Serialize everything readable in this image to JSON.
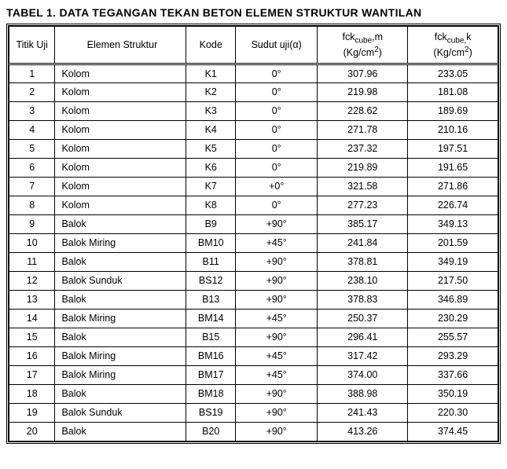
{
  "title": "TABEL 1. DATA TEGANGAN TEKAN BETON ELEMEN STRUKTUR WANTILAN",
  "columns": {
    "titik": "Titik Uji",
    "elemen": "Elemen Struktur",
    "kode": "Kode",
    "sudut": "Sudut uji(α)",
    "fckm_line1": "fck",
    "fckm_sub": "cube",
    "fckm_after": ",m",
    "fckm_unit1": "(Kg/cm",
    "fckm_sup": "2",
    "fckm_unit2": ")",
    "fckk_line1": "fck",
    "fckk_sub": "cube,",
    "fckk_after": "k",
    "fckk_unit1": "(Kg/cm",
    "fckk_sup": "2",
    "fckk_unit2": ")"
  },
  "rows": [
    {
      "titik": "1",
      "elemen": "Kolom",
      "kode": "K1",
      "sudut": "0°",
      "fckm": "307.96",
      "fckk": "233.05"
    },
    {
      "titik": "2",
      "elemen": "Kolom",
      "kode": "K2",
      "sudut": "0°",
      "fckm": "219.98",
      "fckk": "181.08"
    },
    {
      "titik": "3",
      "elemen": "Kolom",
      "kode": "K3",
      "sudut": "0°",
      "fckm": "228.62",
      "fckk": "189.69"
    },
    {
      "titik": "4",
      "elemen": "Kolom",
      "kode": "K4",
      "sudut": "0°",
      "fckm": "271.78",
      "fckk": "210.16"
    },
    {
      "titik": "5",
      "elemen": "Kolom",
      "kode": "K5",
      "sudut": "0°",
      "fckm": "237.32",
      "fckk": "197.51"
    },
    {
      "titik": "6",
      "elemen": "Kolom",
      "kode": "K6",
      "sudut": "0°",
      "fckm": "219.89",
      "fckk": "191.65"
    },
    {
      "titik": "7",
      "elemen": "Kolom",
      "kode": "K7",
      "sudut": "+0°",
      "fckm": "321.58",
      "fckk": "271.86"
    },
    {
      "titik": "8",
      "elemen": "Kolom",
      "kode": "K8",
      "sudut": "0°",
      "fckm": "277.23",
      "fckk": "226.74"
    },
    {
      "titik": "9",
      "elemen": "Balok",
      "kode": "B9",
      "sudut": "+90°",
      "fckm": "385.17",
      "fckk": "349.13"
    },
    {
      "titik": "10",
      "elemen": "Balok  Miring",
      "kode": "BM10",
      "sudut": "+45°",
      "fckm": "241.84",
      "fckk": "201.59"
    },
    {
      "titik": "11",
      "elemen": "Balok",
      "kode": "B11",
      "sudut": "+90°",
      "fckm": "378.81",
      "fckk": "349.19"
    },
    {
      "titik": "12",
      "elemen": "Balok Sunduk",
      "kode": "BS12",
      "sudut": "+90°",
      "fckm": "238.10",
      "fckk": "217.50"
    },
    {
      "titik": "13",
      "elemen": "Balok",
      "kode": "B13",
      "sudut": "+90°",
      "fckm": "378.83",
      "fckk": "346.89"
    },
    {
      "titik": "14",
      "elemen": "Balok  Miring",
      "kode": "BM14",
      "sudut": "+45°",
      "fckm": "250.37",
      "fckk": "230.29"
    },
    {
      "titik": "15",
      "elemen": "Balok",
      "kode": "B15",
      "sudut": "+90°",
      "fckm": "296.41",
      "fckk": "255.57"
    },
    {
      "titik": "16",
      "elemen": "Balok  Miring",
      "kode": "BM16",
      "sudut": "+45°",
      "fckm": "317.42",
      "fckk": "293.29"
    },
    {
      "titik": "17",
      "elemen": "Balok  Miring",
      "kode": "BM17",
      "sudut": "+45°",
      "fckm": "374.00",
      "fckk": "337.66"
    },
    {
      "titik": "18",
      "elemen": "Balok",
      "kode": "BM18",
      "sudut": "+90°",
      "fckm": "388.98",
      "fckk": "350.19"
    },
    {
      "titik": "19",
      "elemen": "Balok Sunduk",
      "kode": "BS19",
      "sudut": "+90°",
      "fckm": "241.43",
      "fckk": "220.30"
    },
    {
      "titik": "20",
      "elemen": "Balok",
      "kode": "B20",
      "sudut": "+90°",
      "fckm": "413.26",
      "fckk": "374.45"
    }
  ]
}
